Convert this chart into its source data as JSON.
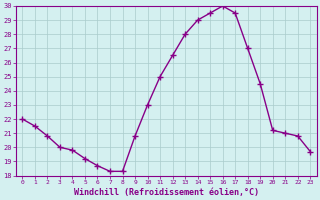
{
  "x": [
    0,
    1,
    2,
    3,
    4,
    5,
    6,
    7,
    8,
    9,
    10,
    11,
    12,
    13,
    14,
    15,
    16,
    17,
    18,
    19,
    20,
    21,
    22,
    23
  ],
  "y": [
    22,
    21.5,
    20.8,
    20.0,
    19.8,
    19.2,
    18.7,
    18.3,
    18.3,
    20.8,
    23.0,
    25.0,
    26.5,
    28.0,
    29.0,
    29.5,
    30.0,
    29.5,
    27.0,
    24.5,
    21.2,
    21.0,
    20.8,
    19.7
  ],
  "line_color": "#880088",
  "marker": "+",
  "marker_size": 4,
  "bg_color": "#d4f0f0",
  "grid_color": "#aacccc",
  "xlabel": "Windchill (Refroidissement éolien,°C)",
  "xlabel_color": "#880088",
  "ylim": [
    18,
    30
  ],
  "xlim": [
    -0.5,
    23.5
  ],
  "yticks": [
    18,
    19,
    20,
    21,
    22,
    23,
    24,
    25,
    26,
    27,
    28,
    29,
    30
  ],
  "xticks": [
    0,
    1,
    2,
    3,
    4,
    5,
    6,
    7,
    8,
    9,
    10,
    11,
    12,
    13,
    14,
    15,
    16,
    17,
    18,
    19,
    20,
    21,
    22,
    23
  ],
  "tick_label_color": "#880088",
  "spine_color": "#880088",
  "line_width": 1.0,
  "marker_edge_width": 1.0
}
